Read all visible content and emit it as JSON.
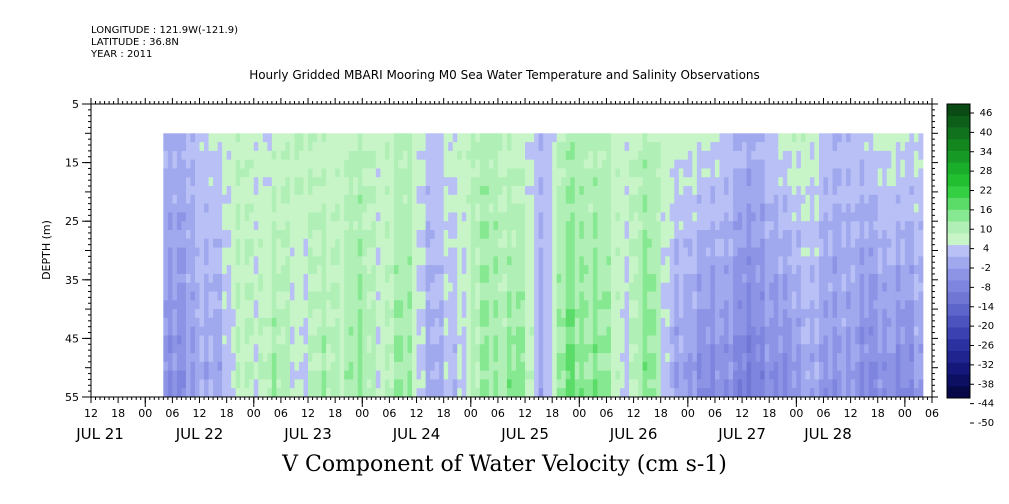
{
  "header": {
    "longitude": "LONGITUDE : 121.9W(-121.9)",
    "latitude": "LATITUDE : 36.8N",
    "year": "YEAR : 2011"
  },
  "chart_data": {
    "type": "heatmap",
    "title": "Hourly Gridded MBARI Mooring M0 Sea Water Temperature and Salinity Observations",
    "caption": "V Component of Water Velocity (cm s-1)",
    "ylabel": "DEPTH (m)",
    "x_range_hours": [
      -12,
      174
    ],
    "x_data_start_hour": 4,
    "x_data_end_hour": 172,
    "y_range_m": [
      5,
      55
    ],
    "y_data_top_m": 10,
    "y_data_bottom_m": 55,
    "y_ticks": [
      5,
      15,
      25,
      35,
      45,
      55
    ],
    "x_hour_ticks": [
      {
        "h": -12,
        "label": "12"
      },
      {
        "h": -6,
        "label": "18"
      },
      {
        "h": 0,
        "label": "00"
      },
      {
        "h": 6,
        "label": "06"
      },
      {
        "h": 12,
        "label": "12"
      },
      {
        "h": 18,
        "label": "18"
      },
      {
        "h": 24,
        "label": "00"
      },
      {
        "h": 30,
        "label": "06"
      },
      {
        "h": 36,
        "label": "12"
      },
      {
        "h": 42,
        "label": "18"
      },
      {
        "h": 48,
        "label": "00"
      },
      {
        "h": 54,
        "label": "06"
      },
      {
        "h": 60,
        "label": "12"
      },
      {
        "h": 66,
        "label": "18"
      },
      {
        "h": 72,
        "label": "00"
      },
      {
        "h": 78,
        "label": "06"
      },
      {
        "h": 84,
        "label": "12"
      },
      {
        "h": 90,
        "label": "18"
      },
      {
        "h": 96,
        "label": "00"
      },
      {
        "h": 102,
        "label": "06"
      },
      {
        "h": 108,
        "label": "12"
      },
      {
        "h": 114,
        "label": "18"
      },
      {
        "h": 120,
        "label": "00"
      },
      {
        "h": 126,
        "label": "06"
      },
      {
        "h": 132,
        "label": "12"
      },
      {
        "h": 138,
        "label": "18"
      },
      {
        "h": 144,
        "label": "00"
      },
      {
        "h": 150,
        "label": "06"
      },
      {
        "h": 156,
        "label": "12"
      },
      {
        "h": 162,
        "label": "18"
      },
      {
        "h": 168,
        "label": "00"
      },
      {
        "h": 174,
        "label": "06"
      }
    ],
    "x_day_labels": [
      {
        "h": -10,
        "label": "JUL 21"
      },
      {
        "h": 12,
        "label": "JUL 22"
      },
      {
        "h": 36,
        "label": "JUL 23"
      },
      {
        "h": 60,
        "label": "JUL 24"
      },
      {
        "h": 84,
        "label": "JUL 25"
      },
      {
        "h": 108,
        "label": "JUL 26"
      },
      {
        "h": 132,
        "label": "JUL 27"
      },
      {
        "h": 151,
        "label": "JUL 28"
      }
    ],
    "colorbar_labels": [
      "46",
      "40",
      "34",
      "28",
      "22",
      "16",
      "10",
      "4",
      "-2",
      "-8",
      "-14",
      "-20",
      "-26",
      "-32",
      "-38",
      "-44",
      "-50"
    ],
    "colorbar_colors": [
      "#0a4a14",
      "#0d5e18",
      "#10721c",
      "#138620",
      "#179a25",
      "#1bae2a",
      "#22c030",
      "#35cf44",
      "#5bdc68",
      "#86e890",
      "#b0f0b6",
      "#c8f5c8",
      "#b8c0f5",
      "#a0a8ee",
      "#8d94e6",
      "#7e85de",
      "#6f76d4",
      "#5e65ca",
      "#4c53be",
      "#3b41b0",
      "#2c31a0",
      "#20248e",
      "#15187a",
      "#0c0f62",
      "#060848"
    ],
    "time_profile_hours": [
      4,
      10,
      16,
      22,
      28,
      34,
      40,
      46,
      52,
      58,
      64,
      70,
      76,
      82,
      88,
      94,
      100,
      106,
      112,
      118,
      124,
      130,
      136,
      142,
      148,
      154,
      160,
      166,
      172
    ],
    "surface_values": [
      -3,
      -2,
      2,
      5,
      2,
      6,
      3,
      6,
      4,
      6,
      -1,
      5,
      7,
      4,
      -1,
      8,
      6,
      4,
      7,
      2,
      3,
      -1,
      -3,
      4,
      3,
      -2,
      1,
      3,
      2
    ],
    "deep_values": [
      -9,
      -8,
      -3,
      4,
      8,
      2,
      7,
      9,
      5,
      9,
      -6,
      2,
      9,
      12,
      -3,
      14,
      11,
      2,
      12,
      -8,
      -10,
      -12,
      -14,
      -9,
      -6,
      -8,
      -10,
      -12,
      -6
    ]
  }
}
